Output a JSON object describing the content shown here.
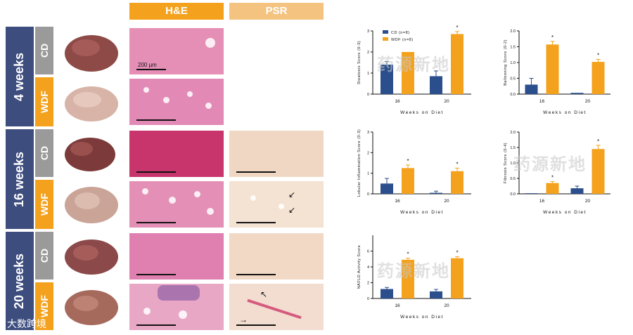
{
  "columns": {
    "he": "H&E",
    "psr": "PSR"
  },
  "rows": [
    {
      "week": "4 weeks",
      "groups": [
        "CD",
        "WDF"
      ]
    },
    {
      "week": "16 weeks",
      "groups": [
        "CD",
        "WDF"
      ]
    },
    {
      "week": "20 weeks",
      "groups": [
        "CD",
        "WDF"
      ]
    }
  ],
  "scale_bar": "200 µm",
  "watermark": "药源新地",
  "footer": {
    "logo": "大数跨境"
  },
  "colors": {
    "cd": "#2b4e8c",
    "wdf": "#f4a21d",
    "week_bg": "#3d4d7e",
    "group_cd": "#9a9a9a"
  },
  "chart_data": [
    {
      "type": "bar",
      "ylabel": "Steatosis Score (0-3)",
      "xlabel": "Weeks on Diet",
      "categories": [
        "16",
        "20"
      ],
      "ylim": [
        0,
        3
      ],
      "yticks": [
        "0",
        "1",
        "2",
        "3"
      ],
      "legend": [
        "CD (n=8)",
        "WDF (n=8)"
      ],
      "series": [
        {
          "name": "CD (n=8)",
          "values": [
            1.4,
            0.85
          ],
          "err": [
            0.15,
            0.25
          ]
        },
        {
          "name": "WDF (n=8)",
          "values": [
            2.0,
            2.85
          ],
          "err": [
            0.0,
            0.12
          ]
        }
      ],
      "stars": [
        false,
        true
      ]
    },
    {
      "type": "bar",
      "ylabel": "Ballooning Score (0-2)",
      "xlabel": "Weeks on Diet",
      "categories": [
        "16",
        "20"
      ],
      "ylim": [
        0,
        2
      ],
      "yticks": [
        "0.0",
        "0.5",
        "1.0",
        "1.5",
        "2.0"
      ],
      "series": [
        {
          "values": [
            0.3,
            0.04
          ],
          "err": [
            0.2,
            0.0
          ]
        },
        {
          "values": [
            1.57,
            1.02
          ],
          "err": [
            0.1,
            0.08
          ]
        }
      ],
      "stars": [
        true,
        true
      ]
    },
    {
      "type": "bar",
      "ylabel": "Lobular Inflammation Score (0-3)",
      "xlabel": "Weeks on Diet",
      "categories": [
        "16",
        "20"
      ],
      "ylim": [
        0,
        3
      ],
      "yticks": [
        "0",
        "1",
        "2",
        "3"
      ],
      "series": [
        {
          "values": [
            0.5,
            0.05
          ],
          "err": [
            0.25,
            0.08
          ]
        },
        {
          "values": [
            1.25,
            1.1
          ],
          "err": [
            0.15,
            0.15
          ]
        }
      ],
      "stars": [
        true,
        true
      ]
    },
    {
      "type": "bar",
      "ylabel": "Fibrosis Score (0-4)",
      "xlabel": "Weeks on Diet",
      "categories": [
        "16",
        "20"
      ],
      "ylim": [
        0,
        2
      ],
      "yticks": [
        "0.0",
        "0.5",
        "1.0",
        "1.5",
        "2.0"
      ],
      "series": [
        {
          "values": [
            0.02,
            0.18
          ],
          "err": [
            0.0,
            0.07
          ]
        },
        {
          "values": [
            0.35,
            1.45
          ],
          "err": [
            0.05,
            0.12
          ]
        }
      ],
      "stars": [
        true,
        true
      ]
    },
    {
      "type": "bar",
      "ylabel": "NAFLD Activity Score",
      "xlabel": "Weeks on Diet",
      "categories": [
        "16",
        "20"
      ],
      "ylim": [
        0,
        8
      ],
      "yticks": [
        "0",
        "2",
        "4",
        "6"
      ],
      "series": [
        {
          "values": [
            1.2,
            0.9
          ],
          "err": [
            0.2,
            0.25
          ]
        },
        {
          "values": [
            4.9,
            5.1
          ],
          "err": [
            0.2,
            0.2
          ]
        }
      ],
      "stars": [
        true,
        true
      ]
    }
  ]
}
